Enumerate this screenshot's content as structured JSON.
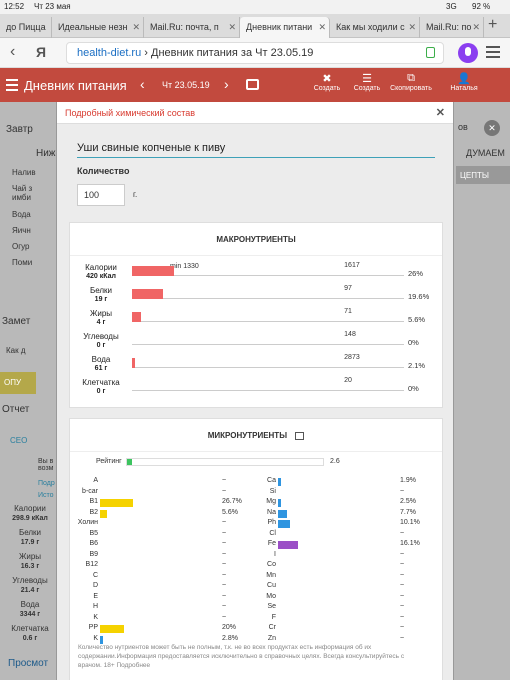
{
  "status": {
    "time": "12:52",
    "date": "Чт 23 мая",
    "network": "3G",
    "battery": "92 %"
  },
  "tabs": [
    {
      "label": "до Пицца"
    },
    {
      "label": "Идеальные незн"
    },
    {
      "label": "Mail.Ru: почта, п"
    },
    {
      "label": "Дневник питани",
      "active": true
    },
    {
      "label": "Как мы ходили с"
    },
    {
      "label": "Mail.Ru: по"
    }
  ],
  "url": {
    "host": "health-diet.ru",
    "path": " › Дневник питания за Чт 23.05.19"
  },
  "appbar": {
    "title": "Дневник питания",
    "date": "Чт 23.05.19",
    "actions": [
      "Создать",
      "Создать",
      "Скопировать",
      "Наталья"
    ]
  },
  "background": {
    "left_labels": [
      "Завтр",
      "Ниже",
      "Налив",
      "Чай з имби",
      "Вода",
      "Яичн",
      "Огур",
      "Поми",
      "Замет",
      "Как д",
      "ОПУ",
      "Отчет",
      "СЕО",
      "Вы в возм",
      "Подр",
      "Исто"
    ],
    "totals": [
      {
        "name": "Калории",
        "value": "298.9 кКал"
      },
      {
        "name": "Белки",
        "value": "17.9 г"
      },
      {
        "name": "Жиры",
        "value": "16.3 г"
      },
      {
        "name": "Углеводы",
        "value": "21.4 г"
      },
      {
        "name": "Вода",
        "value": "3344 г"
      },
      {
        "name": "Клетчатка",
        "value": "0.6 г"
      }
    ],
    "bottom_link": "Просмот",
    "right_label": "ДУМАЕМ",
    "right_tab": "ЦЕПТЫ",
    "right_top": "ов"
  },
  "modal": {
    "title": "Подробный химический состав",
    "product_name": "Уши свиные копченые к пиву",
    "qty_label": "Количество",
    "qty_value": "100",
    "qty_unit": "г."
  },
  "macro": {
    "title": "МАКРОНУТРИЕНТЫ",
    "min_label": "min 1330",
    "rows": [
      {
        "name": "Калории",
        "amount": "420 кКал",
        "norm": "1617",
        "percent": "26%",
        "fraction": 0.26
      },
      {
        "name": "Белки",
        "amount": "19 г",
        "norm": "97",
        "percent": "19.6%",
        "fraction": 0.196
      },
      {
        "name": "Жиры",
        "amount": "4 г",
        "norm": "71",
        "percent": "5.6%",
        "fraction": 0.056
      },
      {
        "name": "Углеводы",
        "amount": "0 г",
        "norm": "148",
        "percent": "0%",
        "fraction": 0
      },
      {
        "name": "Вода",
        "amount": "61 г",
        "norm": "2873",
        "percent": "2.1%",
        "fraction": 0.021
      },
      {
        "name": "Клетчатка",
        "amount": "0 г",
        "norm": "20",
        "percent": "0%",
        "fraction": 0
      }
    ]
  },
  "micro": {
    "title": "МИКРОНУТРИЕНТЫ",
    "rating_label": "Рейтинг",
    "rating_value": "2.6",
    "rating_fraction": 0.026,
    "vitamins": [
      {
        "name": "A",
        "value": "~",
        "fraction": 0,
        "color": "#f5d200"
      },
      {
        "name": "b-car",
        "value": "~",
        "fraction": 0,
        "color": "#f5d200"
      },
      {
        "name": "B1",
        "value": "26.7%",
        "fraction": 0.267,
        "color": "#f5d200"
      },
      {
        "name": "B2",
        "value": "5.6%",
        "fraction": 0.056,
        "color": "#f5d200"
      },
      {
        "name": "Холин",
        "value": "~",
        "fraction": 0,
        "color": "#f5d200"
      },
      {
        "name": "B5",
        "value": "~",
        "fraction": 0,
        "color": "#f5d200"
      },
      {
        "name": "B6",
        "value": "~",
        "fraction": 0,
        "color": "#f5d200"
      },
      {
        "name": "B9",
        "value": "~",
        "fraction": 0,
        "color": "#f5d200"
      },
      {
        "name": "B12",
        "value": "~",
        "fraction": 0,
        "color": "#f5d200"
      },
      {
        "name": "C",
        "value": "~",
        "fraction": 0,
        "color": "#f5d200"
      },
      {
        "name": "D",
        "value": "~",
        "fraction": 0,
        "color": "#f5d200"
      },
      {
        "name": "E",
        "value": "~",
        "fraction": 0,
        "color": "#f5d200"
      },
      {
        "name": "H",
        "value": "~",
        "fraction": 0,
        "color": "#f5d200"
      },
      {
        "name": "K",
        "value": "~",
        "fraction": 0,
        "color": "#f5d200"
      },
      {
        "name": "PP",
        "value": "20%",
        "fraction": 0.2,
        "color": "#f5d200"
      },
      {
        "name": "K",
        "value": "2.8%",
        "fraction": 0.028,
        "color": "#2f95e0"
      }
    ],
    "minerals": [
      {
        "name": "Ca",
        "value": "1.9%",
        "fraction": 0.019,
        "color": "#2f95e0"
      },
      {
        "name": "Si",
        "value": "~",
        "fraction": 0,
        "color": "#2f95e0"
      },
      {
        "name": "Mg",
        "value": "2.5%",
        "fraction": 0.025,
        "color": "#2f95e0"
      },
      {
        "name": "Na",
        "value": "7.7%",
        "fraction": 0.077,
        "color": "#2f95e0"
      },
      {
        "name": "Ph",
        "value": "10.1%",
        "fraction": 0.101,
        "color": "#2f95e0"
      },
      {
        "name": "Cl",
        "value": "~",
        "fraction": 0,
        "color": "#2f95e0"
      },
      {
        "name": "Fe",
        "value": "16.1%",
        "fraction": 0.161,
        "color": "#9b4fc6"
      },
      {
        "name": "I",
        "value": "~",
        "fraction": 0,
        "color": "#2f95e0"
      },
      {
        "name": "Co",
        "value": "~",
        "fraction": 0,
        "color": "#2f95e0"
      },
      {
        "name": "Mn",
        "value": "~",
        "fraction": 0,
        "color": "#2f95e0"
      },
      {
        "name": "Cu",
        "value": "~",
        "fraction": 0,
        "color": "#2f95e0"
      },
      {
        "name": "Mo",
        "value": "~",
        "fraction": 0,
        "color": "#2f95e0"
      },
      {
        "name": "Se",
        "value": "~",
        "fraction": 0,
        "color": "#2f95e0"
      },
      {
        "name": "F",
        "value": "~",
        "fraction": 0,
        "color": "#2f95e0"
      },
      {
        "name": "Cr",
        "value": "~",
        "fraction": 0,
        "color": "#2f95e0"
      },
      {
        "name": "Zn",
        "value": "~",
        "fraction": 0,
        "color": "#2f95e0"
      }
    ],
    "footnote": "Количество нутриентов может быть не полным, т.к. не во всех продуктах есть информация об их содержании.Информация предоставляется исключительно в справочных целях. Всегда консультируйтесь с врачом. 18+ Подробнее"
  }
}
